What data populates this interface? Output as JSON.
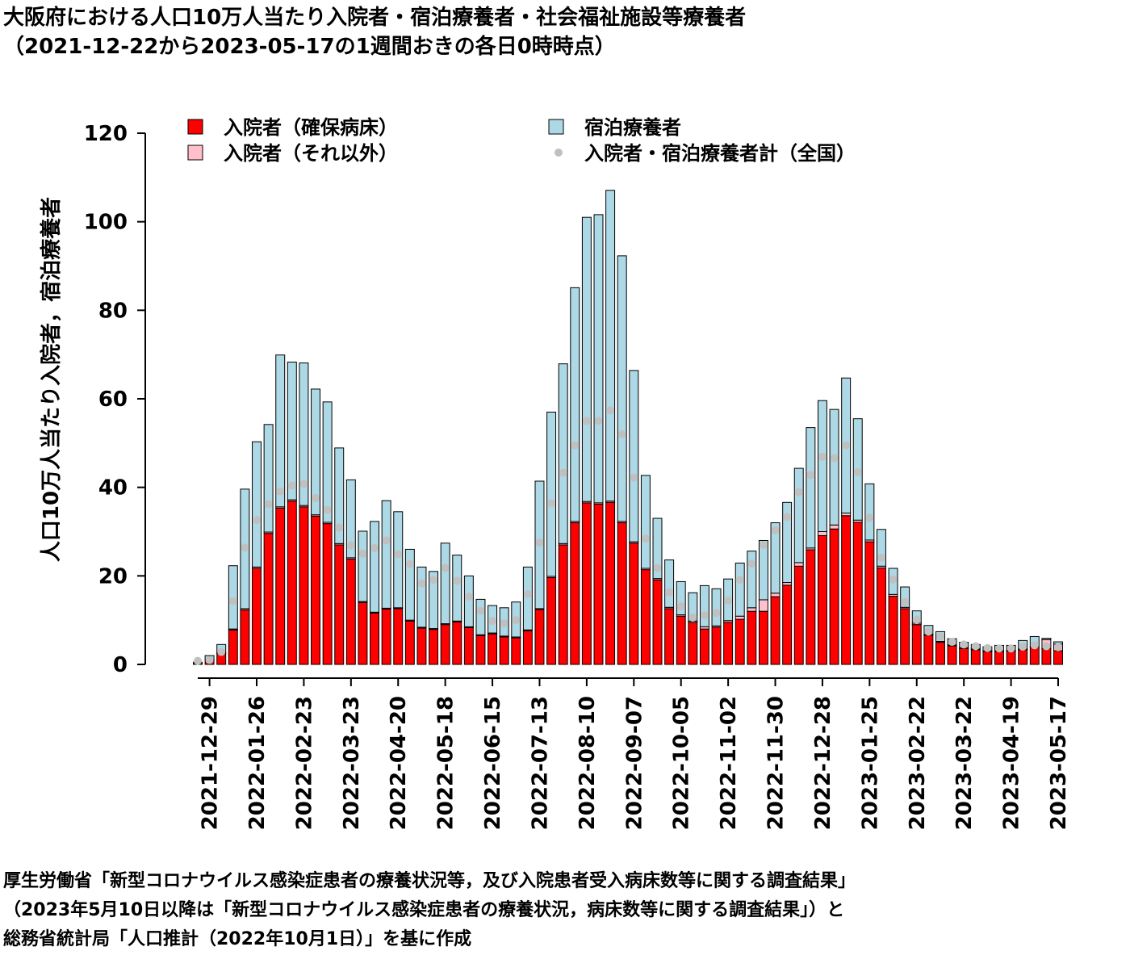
{
  "chart_data": {
    "type": "bar",
    "stacked": true,
    "title": "大阪府における人口10万人当たり入院者・宿泊療養者・社会福祉施設等療養者",
    "subtitle": "（2021-12-22から2023-05-17の1週間おきの各日0時時点）",
    "y_label": "人口10万人当たり入院者，宿泊療養者",
    "footnotes": [
      "厚生労働省「新型コロナウイルス感染症患者の療養状況等，及び入院患者受入病床数等に関する調査結果」",
      "（2023年5月10日以降は「新型コロナウイルス感染症患者の療養状況，病床数等に関する調査結果」）と",
      "総務省統計局「人口推計（2022年10月1日）」を基に作成"
    ],
    "ylim": [
      0,
      120
    ],
    "yticks": [
      0,
      20,
      40,
      60,
      80,
      100,
      120
    ],
    "categories": [
      null,
      "2021-12-29",
      null,
      null,
      null,
      "2022-01-26",
      null,
      null,
      null,
      "2022-02-23",
      null,
      null,
      null,
      "2022-03-23",
      null,
      null,
      null,
      "2022-04-20",
      null,
      null,
      null,
      "2022-05-18",
      null,
      null,
      null,
      "2022-06-15",
      null,
      null,
      null,
      "2022-07-13",
      null,
      null,
      null,
      "2022-08-10",
      null,
      null,
      null,
      "2022-09-07",
      null,
      null,
      null,
      "2022-10-05",
      null,
      null,
      null,
      "2022-11-02",
      null,
      null,
      null,
      "2022-11-30",
      null,
      null,
      null,
      "2022-12-28",
      null,
      null,
      null,
      "2023-01-25",
      null,
      null,
      null,
      "2023-02-22",
      null,
      null,
      null,
      "2023-03-22",
      null,
      null,
      null,
      "2023-04-19",
      null,
      null,
      null,
      "2023-05-17"
    ],
    "series": [
      {
        "name": "入院者（確保病床）",
        "color": "#ff0000",
        "values": [
          0.3,
          1.0,
          2.5,
          7.8,
          12.3,
          21.7,
          29.6,
          35.3,
          36.9,
          35.6,
          33.5,
          31.8,
          27.0,
          23.8,
          14.0,
          11.6,
          12.5,
          12.6,
          9.8,
          8.2,
          7.9,
          9.0,
          9.6,
          8.3,
          6.5,
          6.9,
          6.2,
          6.0,
          7.6,
          12.4,
          19.6,
          27.0,
          32.0,
          36.5,
          36.2,
          36.6,
          32.0,
          27.4,
          21.4,
          19.1,
          12.6,
          10.9,
          9.5,
          8.0,
          8.4,
          9.5,
          10.2,
          12.0,
          12.0,
          15.3,
          17.9,
          22.2,
          25.9,
          29.1,
          30.6,
          33.6,
          32.1,
          27.7,
          21.8,
          15.4,
          12.6,
          9.0,
          6.6,
          5.0,
          4.2,
          3.6,
          3.3,
          2.9,
          2.9,
          3.0,
          3.3,
          3.8,
          3.6,
          3.1
        ]
      },
      {
        "name": "入院者（それ以外）",
        "color": "#ffc0cb",
        "values": [
          0.0,
          0.1,
          0.2,
          0.2,
          0.3,
          0.3,
          0.3,
          0.3,
          0.3,
          0.3,
          0.3,
          0.3,
          0.3,
          0.3,
          0.2,
          0.2,
          0.2,
          0.2,
          0.2,
          0.2,
          0.2,
          0.2,
          0.2,
          0.2,
          0.2,
          0.2,
          0.2,
          0.2,
          0.2,
          0.2,
          0.3,
          0.3,
          0.3,
          0.3,
          0.3,
          0.3,
          0.3,
          0.3,
          0.3,
          0.3,
          0.3,
          0.3,
          0.3,
          0.5,
          0.3,
          0.4,
          0.7,
          0.8,
          2.6,
          0.8,
          0.6,
          0.8,
          0.4,
          0.9,
          0.9,
          0.6,
          0.5,
          0.4,
          0.4,
          0.4,
          0.3,
          0.3,
          0.2,
          0.2,
          0.2,
          0.2,
          0.2,
          0.2,
          0.2,
          0.2,
          0.2,
          0.3,
          2.0,
          1.5
        ]
      },
      {
        "name": "宿泊療養者",
        "color": "#add8e6",
        "values": [
          0.2,
          0.9,
          1.8,
          14.3,
          27.0,
          28.3,
          24.3,
          34.3,
          31.1,
          32.2,
          28.4,
          27.2,
          21.6,
          17.6,
          15.9,
          20.5,
          24.3,
          21.7,
          16.0,
          13.6,
          12.9,
          18.2,
          14.9,
          11.5,
          8.0,
          6.2,
          6.4,
          7.9,
          14.2,
          28.8,
          37.1,
          40.6,
          52.8,
          64.2,
          65.1,
          70.2,
          60.0,
          38.7,
          21.0,
          13.6,
          10.7,
          7.5,
          6.4,
          9.3,
          8.4,
          9.4,
          12.0,
          12.8,
          13.4,
          15.9,
          18.1,
          21.3,
          27.2,
          29.6,
          26.1,
          30.5,
          22.9,
          12.7,
          8.3,
          5.9,
          4.6,
          2.8,
          2.0,
          2.2,
          1.4,
          1.2,
          1.0,
          0.9,
          1.2,
          1.1,
          1.9,
          2.2,
          0.3,
          0.5
        ]
      },
      {
        "name": "入院者・宿泊療養者計（全国）",
        "color": "#c0c0c0",
        "type": "point",
        "values": [
          0.8,
          1.0,
          2.8,
          14.3,
          26.4,
          32.6,
          36.2,
          39.1,
          40.4,
          40.8,
          37.6,
          34.9,
          30.9,
          26.9,
          25.0,
          26.3,
          28.0,
          24.9,
          22.7,
          18.3,
          19.1,
          21.8,
          18.9,
          15.3,
          12.1,
          9.8,
          9.3,
          10.0,
          15.9,
          27.5,
          36.4,
          43.3,
          49.5,
          55.0,
          55.0,
          57.4,
          52.0,
          42.2,
          28.4,
          21.8,
          16.3,
          13.1,
          10.6,
          11.1,
          11.6,
          14.4,
          19.1,
          22.8,
          27.0,
          30.3,
          33.3,
          38.9,
          42.8,
          46.9,
          46.6,
          49.5,
          43.4,
          33.1,
          24.1,
          19.2,
          14.1,
          10.1,
          7.4,
          6.3,
          5.1,
          4.5,
          4.1,
          3.7,
          3.6,
          3.6,
          4.0,
          4.3,
          4.1,
          3.9
        ]
      }
    ]
  }
}
